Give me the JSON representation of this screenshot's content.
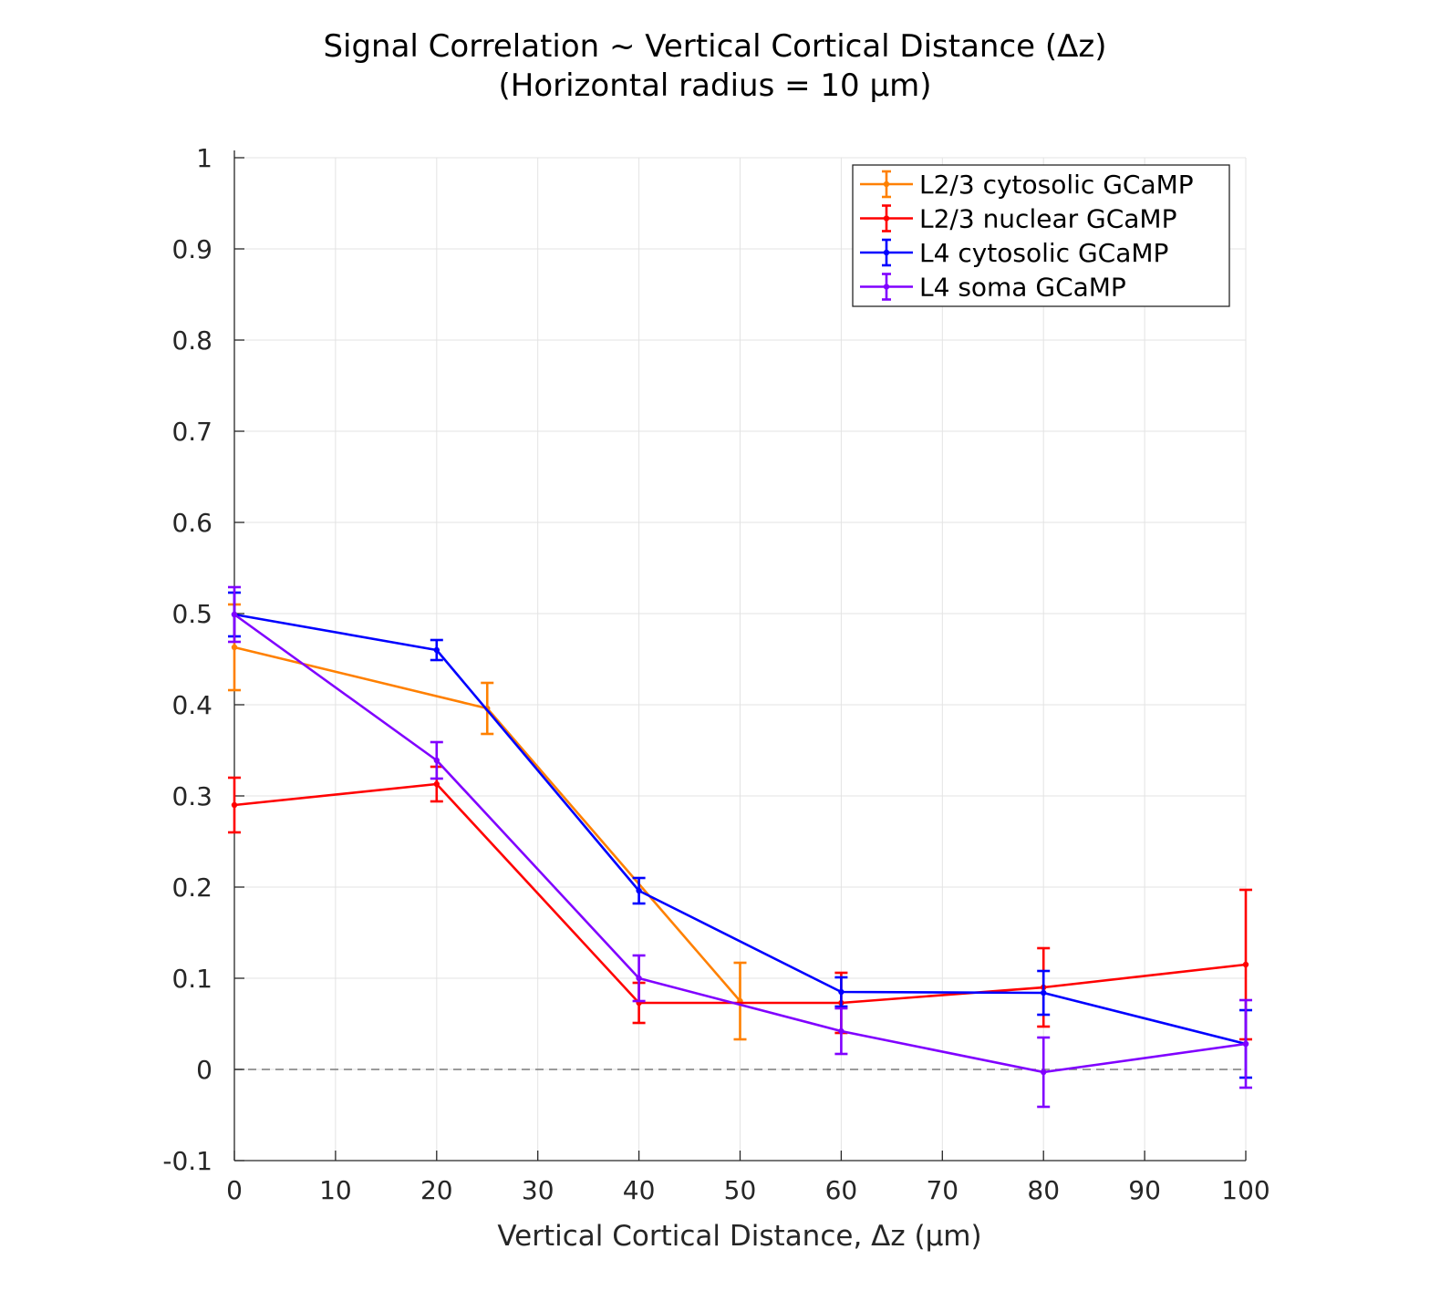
{
  "chart_data": {
    "type": "line",
    "title": "Signal Correlation ~ Vertical Cortical Distance (Δz)",
    "subtitle": "(Horizontal radius = 10 μm)",
    "xlabel": "Vertical Cortical Distance, Δz (μm)",
    "ylabel": "",
    "xlim": [
      0,
      100
    ],
    "ylim": [
      -0.1,
      1
    ],
    "xticks": [
      0,
      10,
      20,
      30,
      40,
      50,
      60,
      70,
      80,
      90,
      100
    ],
    "xtick_labels": [
      "0",
      "10",
      "20",
      "30",
      "40",
      "50",
      "60",
      "70",
      "80",
      "90",
      "100"
    ],
    "yticks": [
      -0.1,
      0,
      0.1,
      0.2,
      0.3,
      0.4,
      0.5,
      0.6,
      0.7,
      0.8,
      0.9,
      1
    ],
    "ytick_labels": [
      "-0.1",
      "0",
      "0.1",
      "0.2",
      "0.3",
      "0.4",
      "0.5",
      "0.6",
      "0.7",
      "0.8",
      "0.9",
      "1"
    ],
    "grid": true,
    "legend_position": "top-right",
    "reference_line": {
      "y": 0,
      "style": "dashed"
    },
    "series": [
      {
        "name": "L2/3 cytosolic GCaMP",
        "color": "#ff8000",
        "x": [
          0,
          25,
          50
        ],
        "y": [
          0.463,
          0.396,
          0.075
        ],
        "error": [
          0.047,
          0.028,
          0.042
        ]
      },
      {
        "name": "L2/3 nuclear GCaMP",
        "color": "#ff0000",
        "x": [
          0,
          20,
          40,
          60,
          80,
          100
        ],
        "y": [
          0.29,
          0.313,
          0.073,
          0.073,
          0.09,
          0.115
        ],
        "error": [
          0.03,
          0.019,
          0.022,
          0.033,
          0.043,
          0.082
        ]
      },
      {
        "name": "L4 cytosolic GCaMP",
        "color": "#0000ff",
        "x": [
          0,
          20,
          40,
          60,
          80,
          100
        ],
        "y": [
          0.499,
          0.46,
          0.196,
          0.085,
          0.084,
          0.028
        ],
        "error": [
          0.024,
          0.011,
          0.014,
          0.016,
          0.024,
          0.037
        ]
      },
      {
        "name": "L4 soma GCaMP",
        "color": "#8000ff",
        "x": [
          0,
          20,
          40,
          60,
          80,
          100
        ],
        "y": [
          0.499,
          0.339,
          0.1,
          0.042,
          -0.003,
          0.028
        ],
        "error": [
          0.03,
          0.02,
          0.025,
          0.025,
          0.038,
          0.048
        ]
      }
    ]
  }
}
